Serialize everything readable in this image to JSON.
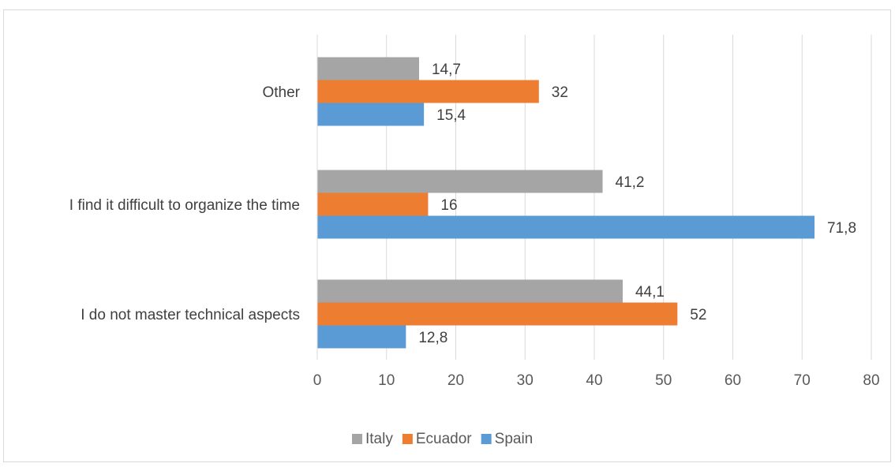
{
  "chart_data": {
    "type": "bar",
    "orientation": "horizontal",
    "categories": [
      "Other",
      "I find it difficult to organize the time",
      "I do not master technical aspects"
    ],
    "series": [
      {
        "name": "Italy",
        "color": "#a5a5a5",
        "values": [
          14.7,
          41.2,
          44.1
        ],
        "labels": [
          "14,7",
          "41,2",
          "44,1"
        ]
      },
      {
        "name": "Ecuador",
        "color": "#ed7d31",
        "values": [
          32,
          16,
          52
        ],
        "labels": [
          "32",
          "16",
          "52"
        ]
      },
      {
        "name": "Spain",
        "color": "#5b9bd5",
        "values": [
          15.4,
          71.8,
          12.8
        ],
        "labels": [
          "15,4",
          "71,8",
          "12,8"
        ]
      }
    ],
    "xlim": [
      0,
      80
    ],
    "xticks": [
      0,
      10,
      20,
      30,
      40,
      50,
      60,
      70,
      80
    ],
    "xtick_labels": [
      "0",
      "10",
      "20",
      "30",
      "40",
      "50",
      "60",
      "70",
      "80"
    ],
    "title": "",
    "xlabel": "",
    "ylabel": "",
    "grid": "vertical",
    "legend_position": "bottom"
  }
}
